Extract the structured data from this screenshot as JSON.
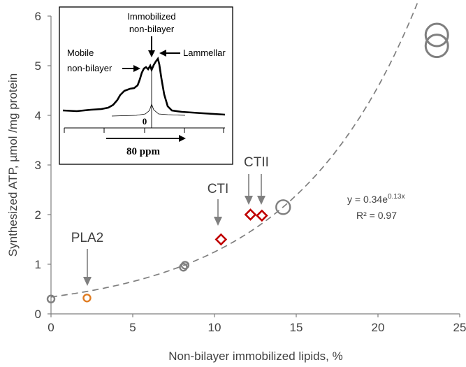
{
  "chart_data": {
    "type": "scatter",
    "xlabel": "Non-bilayer immobilized lipids, %",
    "ylabel": "Synthesized ATP, µmol /mg protein",
    "xlim": [
      0,
      25
    ],
    "ylim": [
      0,
      6
    ],
    "x_ticks": [
      "0",
      "5",
      "10",
      "15",
      "20",
      "25"
    ],
    "y_ticks": [
      "0",
      "1",
      "2",
      "3",
      "4",
      "5",
      "6"
    ],
    "grid": false,
    "series": [
      {
        "color": "#7f7f7f",
        "shape": "circle-open",
        "points": [
          {
            "x": 0.0,
            "y": 0.3,
            "size": "small"
          },
          {
            "x": 8.1,
            "y": 0.94,
            "size": "small"
          },
          {
            "x": 8.2,
            "y": 0.98,
            "size": "small"
          },
          {
            "x": 14.2,
            "y": 2.15,
            "size": "medium"
          },
          {
            "x": 23.6,
            "y": 5.4,
            "size": "large"
          },
          {
            "x": 23.6,
            "y": 5.62,
            "size": "large"
          }
        ]
      },
      {
        "color": "#e07b20",
        "shape": "circle-open",
        "points": [
          {
            "x": 2.2,
            "y": 0.32,
            "size": "small"
          }
        ]
      },
      {
        "color": "#c00000",
        "shape": "diamond-open",
        "points": [
          {
            "x": 10.4,
            "y": 1.5
          },
          {
            "x": 12.2,
            "y": 2.0
          },
          {
            "x": 12.9,
            "y": 1.98
          }
        ]
      }
    ],
    "trendline": {
      "type": "exponential",
      "a": 0.34,
      "b": 0.13,
      "x_range": [
        0,
        23.5
      ],
      "color": "#7f7f7f",
      "style": "dashed"
    },
    "equation": {
      "main": "y = 0.34e",
      "exponent": "0.13x",
      "r2": "R² = 0.97"
    },
    "annotations": [
      {
        "label": "PLA2",
        "x": 2.2,
        "y": 0.32
      },
      {
        "label": "CTI",
        "x": 10.4,
        "y": 1.5
      },
      {
        "label": "CTII",
        "x": 12.5,
        "y": 2.0
      }
    ],
    "inset": {
      "type": "spectrum",
      "labels": {
        "mobile": [
          "Mobile",
          "non-bilayer"
        ],
        "immobilized": [
          "Immobilized",
          "non-bilayer"
        ],
        "lammellar": "Lammellar",
        "zero": "0",
        "scale": "80 ppm"
      }
    }
  }
}
